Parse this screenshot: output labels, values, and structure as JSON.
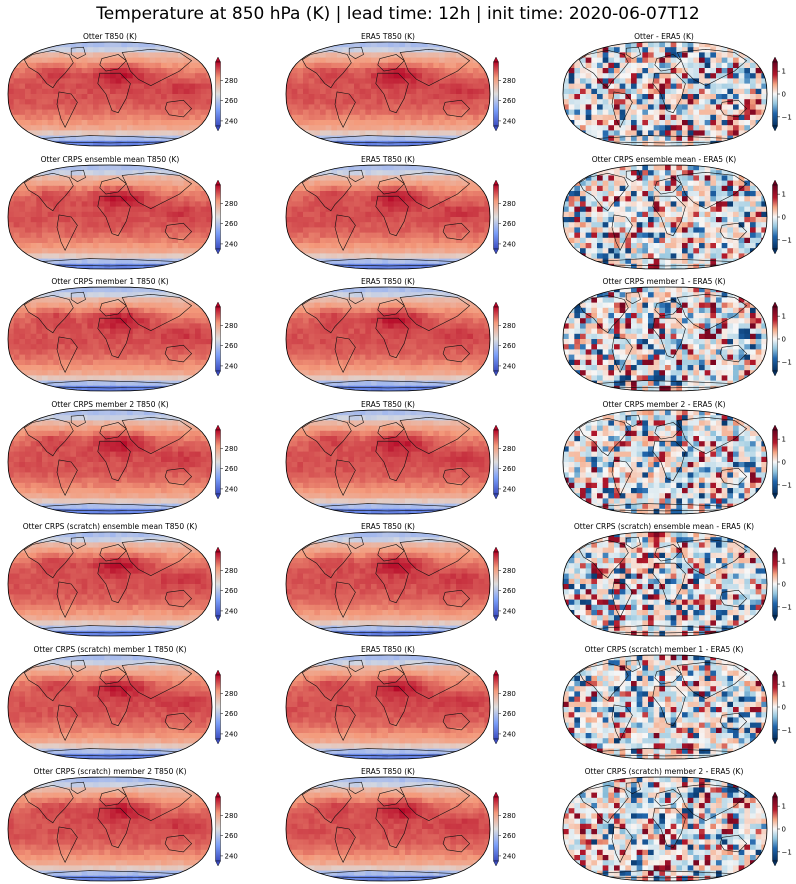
{
  "suptitle": "Temperature at 850 hPa (K) | lead time: 12h | init time: 2020-06-07T12",
  "chart_data": {
    "type": "heatmap",
    "projection": "Robinson",
    "layout": "7 rows x 3 columns of global maps, each with a vertical colorbar",
    "rows": [
      [
        "Otter T850 (K)",
        "ERA5 T850 (K)",
        "Otter - ERA5 (K)"
      ],
      [
        "Otter CRPS ensemble mean T850 (K)",
        "ERA5 T850 (K)",
        "Otter CRPS ensemble mean - ERA5 (K)"
      ],
      [
        "Otter CRPS member 1 T850 (K)",
        "ERA5 T850 (K)",
        "Otter CRPS member 1 - ERA5 (K)"
      ],
      [
        "Otter CRPS member 2 T850 (K)",
        "ERA5 T850 (K)",
        "Otter CRPS member 2 - ERA5 (K)"
      ],
      [
        "Otter CRPS (scratch) ensemble mean T850 (K)",
        "ERA5 T850 (K)",
        "Otter CRPS (scratch) ensemble mean - ERA5 (K)"
      ],
      [
        "Otter CRPS (scratch) member 1 T850 (K)",
        "ERA5 T850 (K)",
        "Otter CRPS (scratch) member 1 - ERA5 (K)"
      ],
      [
        "Otter CRPS (scratch) member 2 T850 (K)",
        "ERA5 T850 (K)",
        "Otter CRPS (scratch) member 2 - ERA5 (K)"
      ]
    ],
    "temperature_colorbar": {
      "colormap": "coolwarm",
      "range": [
        235,
        298
      ],
      "ticks": [
        240,
        260,
        280
      ],
      "tick_labels": [
        "240",
        "260",
        "280"
      ],
      "extend": "both"
    },
    "difference_colorbar": {
      "colormap": "RdBu_r",
      "range": [
        -1.4,
        1.4
      ],
      "ticks": [
        -1,
        0,
        1
      ],
      "tick_labels": [
        "−1",
        "0",
        "1"
      ],
      "extend": "both"
    },
    "colors": {
      "temp_cold": "#3b4cc0",
      "temp_mid": "#dddddd",
      "temp_warm": "#b40426",
      "diff_neg": "#053061",
      "diff_mid": "#f7f7f7",
      "diff_pos": "#67001f"
    }
  }
}
